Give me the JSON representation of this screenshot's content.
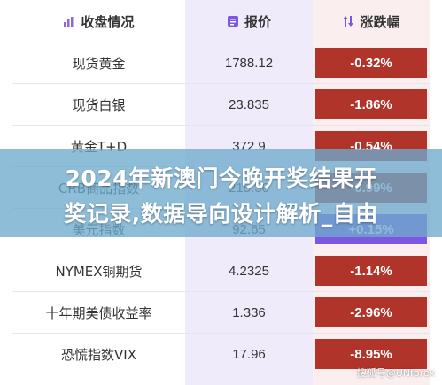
{
  "header": {
    "name": "收盘情况",
    "price": "报价",
    "change": "涨跌幅"
  },
  "rows": [
    {
      "name": "现货黄金",
      "price": "1788.12",
      "change": "-0.32%",
      "trend": "neg"
    },
    {
      "name": "现货白银",
      "price": "23.835",
      "change": "-1.86%",
      "trend": "neg"
    },
    {
      "name": "黄金T+D",
      "price": "372.9",
      "change": "-0.54%",
      "trend": "neg"
    },
    {
      "name": "CRB商品指数",
      "price": "215.30",
      "change": "-0.99%",
      "trend": "neg"
    },
    {
      "name": "美元指数",
      "price": "92.65",
      "change": "+0.15%",
      "trend": "pos"
    },
    {
      "name": "NYMEX铜期货",
      "price": "4.2325",
      "change": "-1.14%",
      "trend": "neg"
    },
    {
      "name": "十年期美债收益率",
      "price": "1.336",
      "change": "-2.96%",
      "trend": "neg"
    },
    {
      "name": "恐慌指数VIX",
      "price": "17.96",
      "change": "-8.95%",
      "trend": "neg"
    }
  ],
  "overlay": {
    "line1": "2024年新澳门今晚开奖结果开",
    "line2": "奖记录,数据导向设计解析_自由"
  },
  "watermark": "搜狐号@UNforex",
  "colors": {
    "negative": "#b0342a",
    "positive": "#7e57e0",
    "price_column_bg": "#efebfa",
    "overlay": "#6eaacd"
  }
}
